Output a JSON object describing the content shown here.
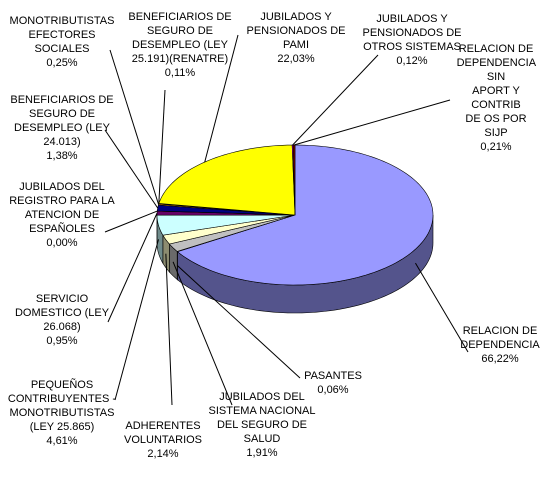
{
  "chart_data": {
    "type": "pie",
    "categories": [
      "RELACION DE\nDEPENDENCIA",
      "PASANTES",
      "JUBILADOS DEL\nSISTEMA NACIONAL\nDEL SEGURO DE\nSALUD",
      "ADHERENTES\nVOLUNTARIOS",
      "PEQUEÑOS\nCONTRIBUYENTES -\nMONOTRIBUTISTAS\n(LEY 25.865)",
      "SERVICIO\nDOMESTICO (LEY\n26.068)",
      "JUBILADOS DEL\nREGISTRO PARA LA\nATENCION DE\nESPAÑOLES",
      "BENEFICIARIOS DE\nSEGURO DE\nDESEMPLEO (LEY\n24.013)",
      "MONOTRIBUTISTAS\nEFECTORES\nSOCIALES",
      "BENEFICIARIOS DE\nSEGURO DE\nDESEMPLEO (LEY\n25.191)(RENATRE)",
      "JUBILADOS Y\nPENSIONADOS DE\nPAMI",
      "JUBILADOS Y\nPENSIONADOS DE\nOTROS SISTEMAS",
      "RELACION DE\nDEPENDENCIA SIN\nAPORT Y CONTRIB\nDE OS POR SIJP"
    ],
    "values": [
      66.22,
      0.06,
      1.91,
      2.14,
      4.61,
      0.95,
      0.0,
      1.38,
      0.25,
      0.11,
      22.03,
      0.12,
      0.21
    ],
    "value_labels": [
      "66,22%",
      "0,06%",
      "1,91%",
      "2,14%",
      "4,61%",
      "0,95%",
      "0,00%",
      "1,38%",
      "0,25%",
      "0,11%",
      "22,03%",
      "0,12%",
      "0,21%"
    ],
    "colors": [
      "#9999ff",
      "#993366",
      "#c0c0c0",
      "#ffffcc",
      "#ccffff",
      "#660066",
      "#ff8080",
      "#000080",
      "#ff9900",
      "#0066cc",
      "#ffff00",
      "#ff00ff",
      "#800000"
    ]
  }
}
